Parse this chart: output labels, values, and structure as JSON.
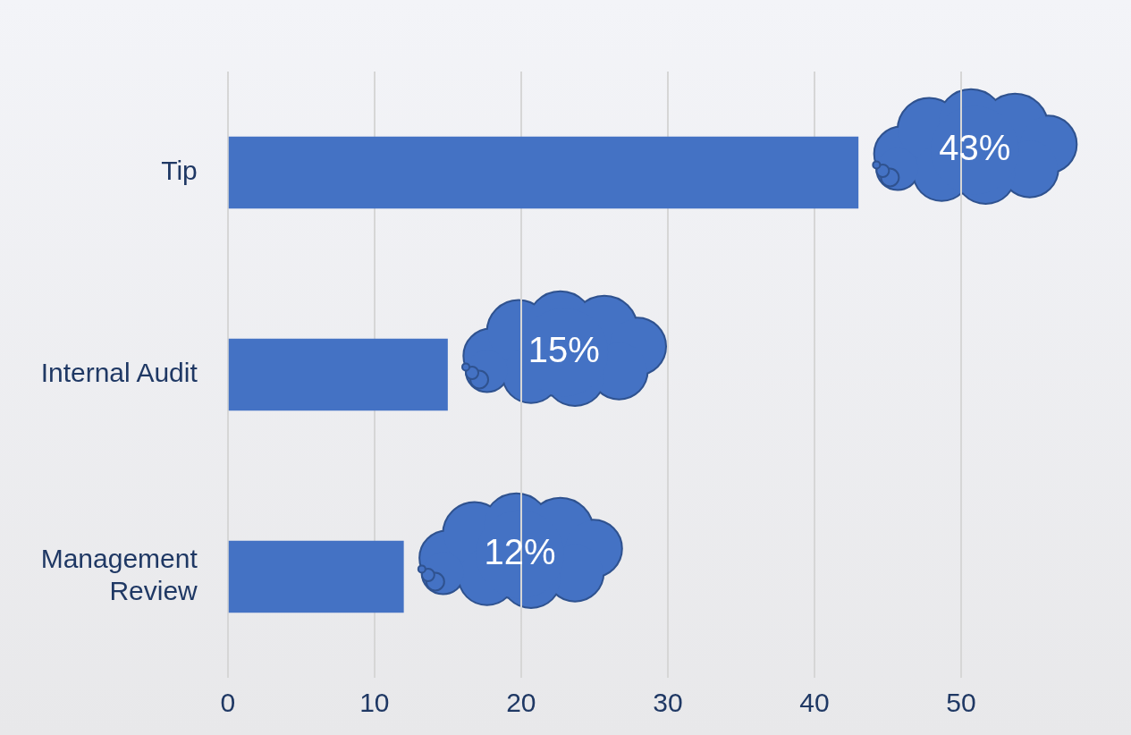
{
  "chart_data": {
    "type": "bar",
    "orientation": "horizontal",
    "categories": [
      "Tip",
      "Internal Audit",
      "Management Review"
    ],
    "values": [
      43,
      15,
      12
    ],
    "color": "#4472c4",
    "value_labels": [
      "43%",
      "15%",
      "12%"
    ],
    "xlim": [
      0,
      50
    ],
    "xticks": [
      0,
      10,
      20,
      30,
      40,
      50
    ],
    "grid": "x",
    "legend": false
  }
}
